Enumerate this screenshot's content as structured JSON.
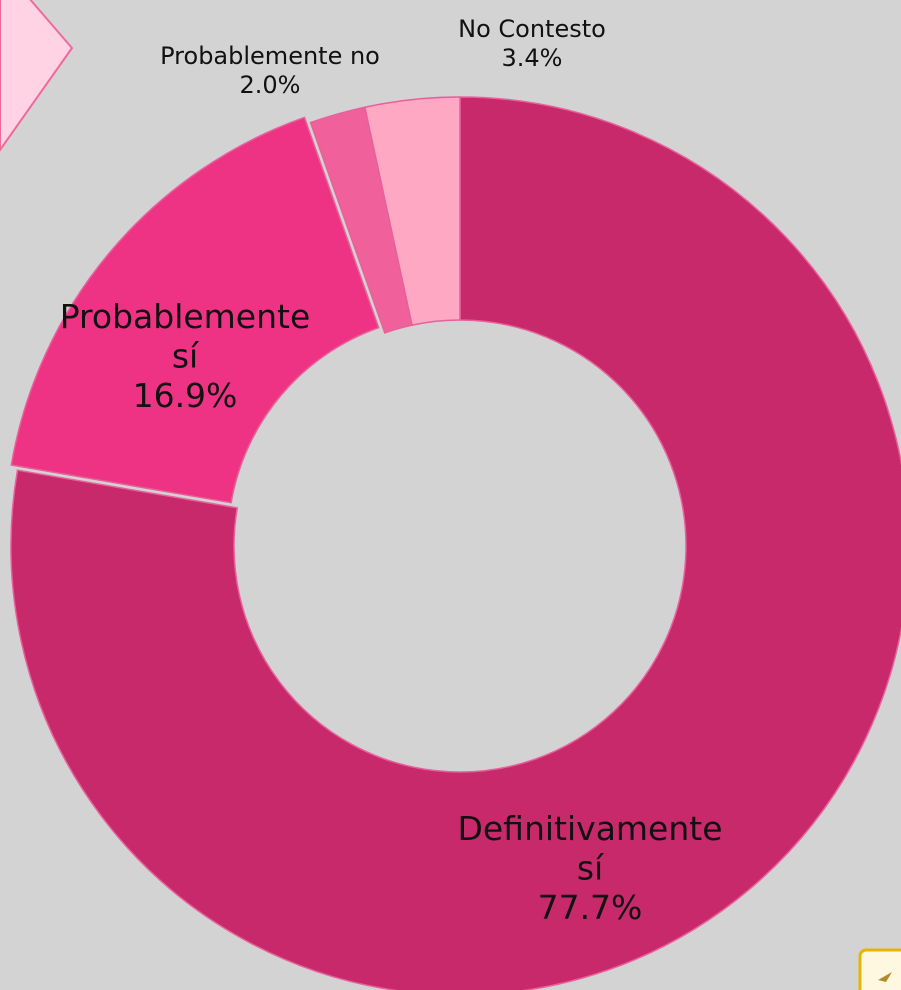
{
  "chart_data": {
    "type": "donut",
    "categories": [
      "Definitivamente sí",
      "Probablemente sí",
      "Probablemente no",
      "No Contesto"
    ],
    "values": [
      77.7,
      16.9,
      2.0,
      3.4
    ],
    "value_labels": [
      "77.7%",
      "16.9%",
      "2.0%",
      "3.4%"
    ],
    "colors": [
      "#c8296b",
      "#ee3384",
      "#f0609a",
      "#ffa8c4"
    ]
  }
}
